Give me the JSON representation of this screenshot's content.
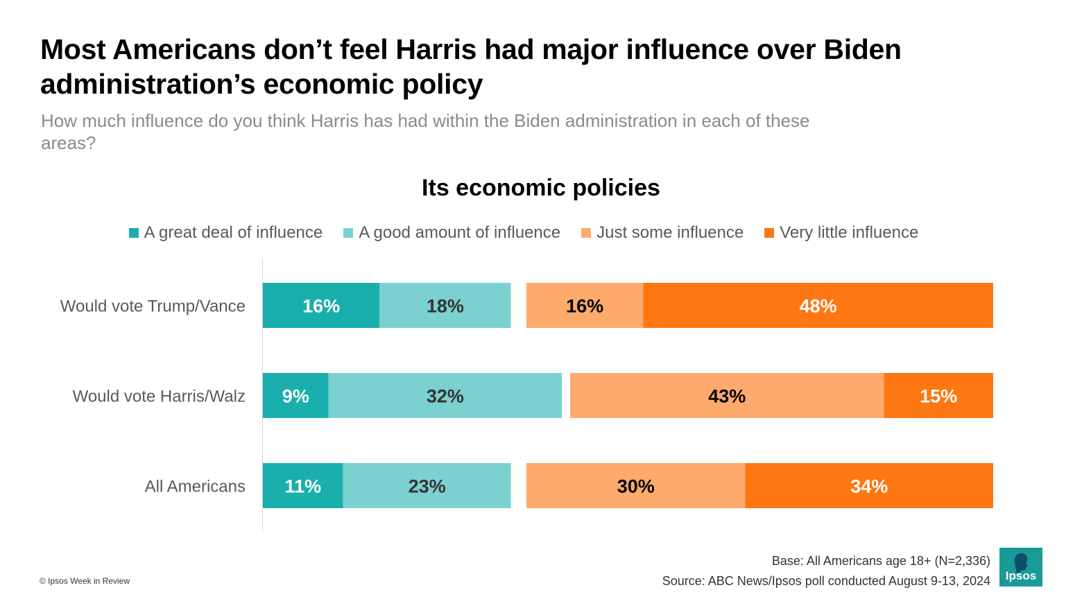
{
  "header": {
    "title": "Most Americans don’t feel Harris had major influence over Biden administration’s economic policy",
    "subtitle": "How much influence do you think Harris has had within the Biden administration in each of these areas?"
  },
  "chart_data": {
    "type": "bar",
    "orientation": "horizontal-stacked-diverging",
    "title": "Its economic policies",
    "categories": [
      "Would vote Trump/Vance",
      "Would vote Harris/Walz",
      "All Americans"
    ],
    "series": [
      {
        "name": "A great deal of influence",
        "color": "#1aaeac",
        "values": [
          16,
          9,
          11
        ],
        "labels": [
          "16%",
          "9%",
          "11%"
        ],
        "label_color": "#ffffff"
      },
      {
        "name": "A good amount of influence",
        "color": "#7ad1cf",
        "values": [
          18,
          32,
          23
        ],
        "labels": [
          "18%",
          "32%",
          "23%"
        ],
        "label_color": "#333333"
      },
      {
        "name": "Just some influence",
        "color": "#fdaa6c",
        "values": [
          16,
          43,
          30
        ],
        "labels": [
          "16%",
          "43%",
          "30%"
        ],
        "label_color": "#000000"
      },
      {
        "name": "Very little influence",
        "color": "#fd7712",
        "values": [
          48,
          15,
          34
        ],
        "labels": [
          "48%",
          "15%",
          "34%"
        ],
        "label_color": "#ffffff"
      }
    ],
    "legend_position": "top",
    "grid": false
  },
  "footer": {
    "copyright": "© Ipsos Week in Review",
    "base": "Base: All Americans age 18+ (N=2,336)",
    "source": "Source: ABC News/Ipsos poll conducted August 9-13, 2024",
    "logo_text": "Ipsos",
    "logo_color": "#1a9a96"
  }
}
